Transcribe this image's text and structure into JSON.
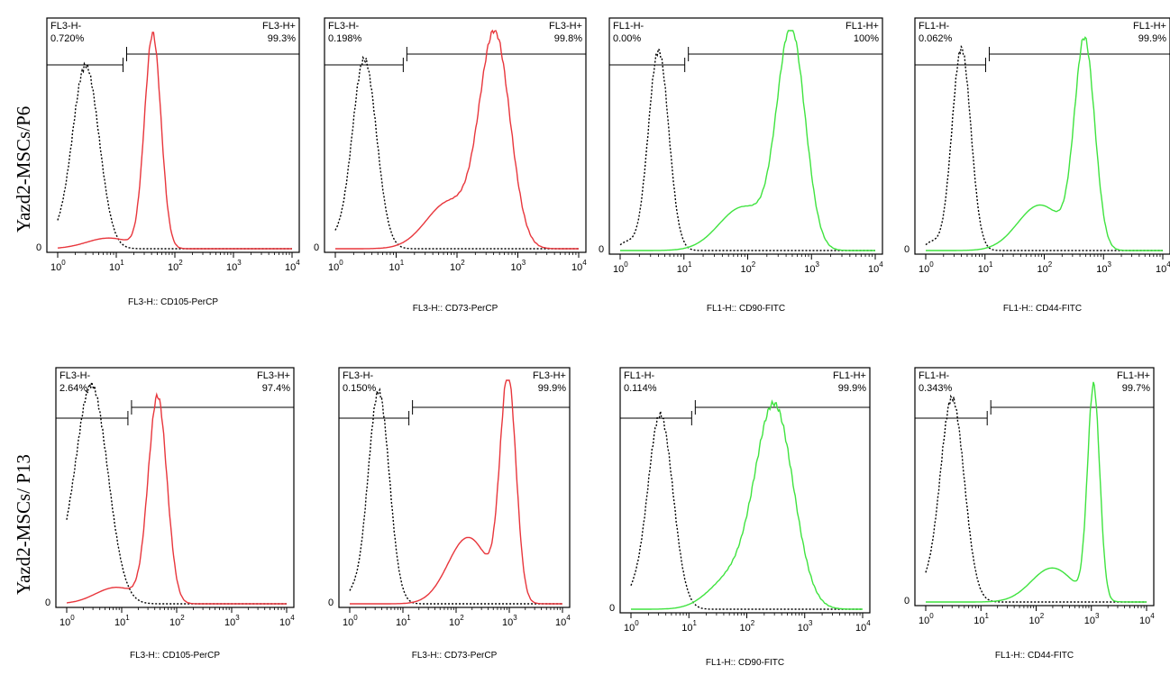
{
  "rows": [
    {
      "label": "Yazd2-MSCs/P6"
    },
    {
      "label": "Yazd2-MSCs/ P13"
    }
  ],
  "colors": {
    "control": "#000000",
    "percp": "#e8363c",
    "fitc": "#3fe33f",
    "frame": "#000000"
  },
  "chart_data": [
    {
      "type": "histogram",
      "row": 0,
      "col": 0,
      "xlabel": "FL3-H:: CD105-PerCP",
      "xscale": "log",
      "xlim": [
        1,
        10000
      ],
      "xticks": [
        {
          "base": "10",
          "exp": "0"
        },
        {
          "base": "10",
          "exp": "1"
        },
        {
          "base": "10",
          "exp": "2"
        },
        {
          "base": "10",
          "exp": "3"
        },
        {
          "base": "10",
          "exp": "4"
        }
      ],
      "ytick": "0",
      "gates": {
        "neg_label": "FL3-H-",
        "neg_value": "0.720%",
        "pos_label": "FL3-H+",
        "pos_value": "99.3%",
        "boundary": 14
      },
      "control": {
        "peak": 3,
        "width": 0.23,
        "peak_height": 0.84,
        "shoulder": 0.04
      },
      "sample": {
        "peak": 42,
        "width": 0.14,
        "peak_height": 0.98,
        "tail": 0.05,
        "color_key": "percp"
      }
    },
    {
      "type": "histogram",
      "row": 0,
      "col": 1,
      "xlabel": "FL3-H:: CD73-PerCP",
      "xscale": "log",
      "xlim": [
        1,
        10000
      ],
      "xticks": [
        {
          "base": "10",
          "exp": "0"
        },
        {
          "base": "10",
          "exp": "1"
        },
        {
          "base": "10",
          "exp": "2"
        },
        {
          "base": "10",
          "exp": "3"
        },
        {
          "base": "10",
          "exp": "4"
        }
      ],
      "ytick": "0",
      "gates": {
        "neg_label": "FL3-H-",
        "neg_value": "0.198%",
        "pos_label": "FL3-H+",
        "pos_value": "99.8%",
        "boundary": 14
      },
      "control": {
        "peak": 3,
        "width": 0.2,
        "peak_height": 0.87,
        "shoulder": 0.04
      },
      "sample": {
        "peak": 420,
        "width": 0.25,
        "peak_height": 0.97,
        "tail": 0.22,
        "color_key": "percp"
      }
    },
    {
      "type": "histogram",
      "row": 0,
      "col": 2,
      "xlabel": "FL1-H:: CD90-FITC",
      "xscale": "log",
      "xlim": [
        1,
        10000
      ],
      "xticks": [
        {
          "base": "10",
          "exp": "0"
        },
        {
          "base": "10",
          "exp": "1"
        },
        {
          "base": "10",
          "exp": "2"
        },
        {
          "base": "10",
          "exp": "3"
        },
        {
          "base": "10",
          "exp": "4"
        }
      ],
      "ytick": "0",
      "gates": {
        "neg_label": "FL1-H-",
        "neg_value": "0.00%",
        "pos_label": "FL1-H+",
        "pos_value": "100%",
        "boundary": 11
      },
      "control": {
        "peak": 4,
        "width": 0.16,
        "peak_height": 0.91,
        "shoulder": 0.04
      },
      "sample": {
        "peak": 480,
        "width": 0.22,
        "peak_height": 0.99,
        "tail": 0.2,
        "color_key": "fitc"
      }
    },
    {
      "type": "histogram",
      "row": 0,
      "col": 3,
      "xlabel": "FL1-H:: CD44-FITC",
      "xscale": "log",
      "xlim": [
        1,
        10000
      ],
      "xticks": [
        {
          "base": "10",
          "exp": "0"
        },
        {
          "base": "10",
          "exp": "1"
        },
        {
          "base": "10",
          "exp": "2"
        },
        {
          "base": "10",
          "exp": "3"
        },
        {
          "base": "10",
          "exp": "4"
        }
      ],
      "ytick": "0",
      "gates": {
        "neg_label": "FL1-H-",
        "neg_value": "0.062%",
        "pos_label": "FL1-H+",
        "pos_value": "99.9%",
        "boundary": 11
      },
      "control": {
        "peak": 4,
        "width": 0.16,
        "peak_height": 0.92,
        "shoulder": 0.04
      },
      "sample": {
        "peak": 480,
        "width": 0.17,
        "peak_height": 0.94,
        "tail": 0.22,
        "color_key": "fitc"
      }
    },
    {
      "type": "histogram",
      "row": 1,
      "col": 0,
      "xlabel": "FL3-H:: CD105-PerCP",
      "xscale": "log",
      "xlim": [
        1,
        10000
      ],
      "xticks": [
        {
          "base": "10",
          "exp": "0"
        },
        {
          "base": "10",
          "exp": "1"
        },
        {
          "base": "10",
          "exp": "2"
        },
        {
          "base": "10",
          "exp": "3"
        },
        {
          "base": "10",
          "exp": "4"
        }
      ],
      "ytick": "0",
      "gates": {
        "neg_label": "FL3-H-",
        "neg_value": "2.64%",
        "pos_label": "FL3-H+",
        "pos_value": "97.4%",
        "boundary": 14
      },
      "control": {
        "peak": 2.8,
        "width": 0.3,
        "peak_height": 0.98,
        "shoulder": 0.06
      },
      "sample": {
        "peak": 45,
        "width": 0.17,
        "peak_height": 0.92,
        "tail": 0.08,
        "color_key": "percp"
      }
    },
    {
      "type": "histogram",
      "row": 1,
      "col": 1,
      "xlabel": "FL3-H:: CD73-PerCP",
      "xscale": "log",
      "xlim": [
        1,
        10000
      ],
      "xticks": [
        {
          "base": "10",
          "exp": "0"
        },
        {
          "base": "10",
          "exp": "1"
        },
        {
          "base": "10",
          "exp": "2"
        },
        {
          "base": "10",
          "exp": "3"
        },
        {
          "base": "10",
          "exp": "4"
        }
      ],
      "ytick": "0",
      "gates": {
        "neg_label": "FL3-H-",
        "neg_value": "0.150%",
        "pos_label": "FL3-H+",
        "pos_value": "99.9%",
        "boundary": 14
      },
      "control": {
        "peak": 3.5,
        "width": 0.2,
        "peak_height": 0.95,
        "shoulder": 0.04
      },
      "sample": {
        "peak": 950,
        "width": 0.15,
        "peak_height": 0.99,
        "tail": 0.3,
        "color_key": "percp"
      }
    },
    {
      "type": "histogram",
      "row": 1,
      "col": 2,
      "xlabel": "FL1-H:: CD90-FITC",
      "xscale": "log",
      "xlim": [
        1,
        10000
      ],
      "xticks": [
        {
          "base": "10",
          "exp": "0"
        },
        {
          "base": "10",
          "exp": "1"
        },
        {
          "base": "10",
          "exp": "2"
        },
        {
          "base": "10",
          "exp": "3"
        },
        {
          "base": "10",
          "exp": "4"
        }
      ],
      "ytick": "0",
      "gates": {
        "neg_label": "FL1-H-",
        "neg_value": "0.114%",
        "pos_label": "FL1-H+",
        "pos_value": "99.9%",
        "boundary": 12
      },
      "control": {
        "peak": 3.2,
        "width": 0.22,
        "peak_height": 0.85,
        "shoulder": 0.05
      },
      "sample": {
        "peak": 300,
        "width": 0.33,
        "peak_height": 0.88,
        "tail": 0.15,
        "color_key": "fitc"
      }
    },
    {
      "type": "histogram",
      "row": 1,
      "col": 3,
      "xlabel": "FL1-H:: CD44-FITC",
      "xscale": "log",
      "xlim": [
        1,
        10000
      ],
      "xticks": [
        {
          "base": "10",
          "exp": "0"
        },
        {
          "base": "10",
          "exp": "1"
        },
        {
          "base": "10",
          "exp": "2"
        },
        {
          "base": "10",
          "exp": "3"
        },
        {
          "base": "10",
          "exp": "4"
        }
      ],
      "ytick": "0",
      "gates": {
        "neg_label": "FL1-H-",
        "neg_value": "0.343%",
        "pos_label": "FL1-H+",
        "pos_value": "99.7%",
        "boundary": 14
      },
      "control": {
        "peak": 3,
        "width": 0.22,
        "peak_height": 0.92,
        "shoulder": 0.05
      },
      "sample": {
        "peak": 1100,
        "width": 0.11,
        "peak_height": 0.96,
        "tail": 0.16,
        "color_key": "fitc"
      }
    }
  ]
}
